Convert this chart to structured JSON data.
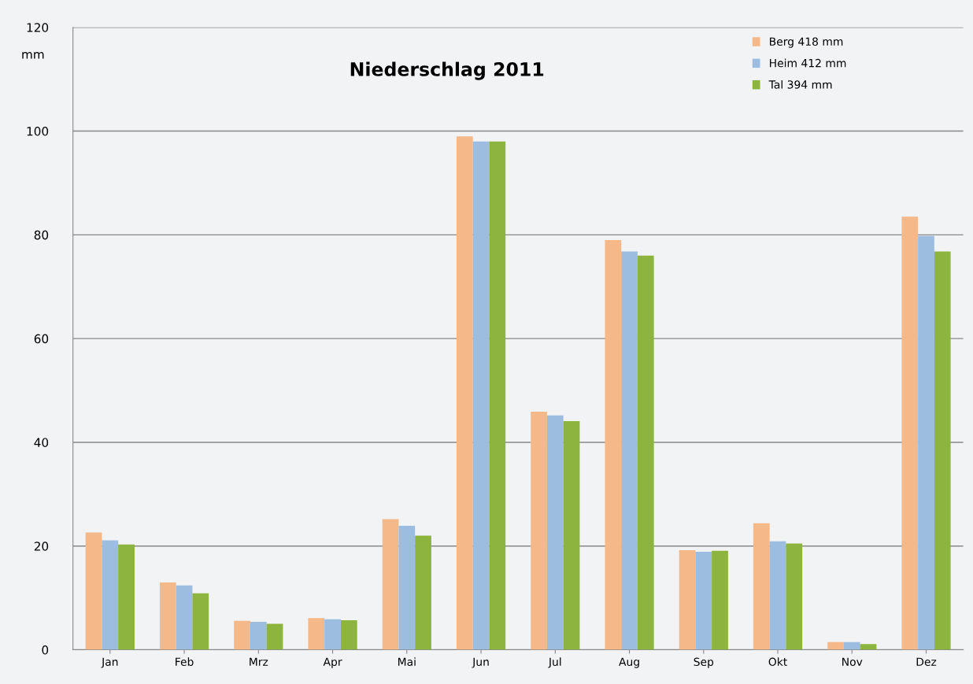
{
  "chart_data": {
    "type": "bar",
    "title": "Niederschlag 2011",
    "ylabel": "mm",
    "categories": [
      "Jan",
      "Feb",
      "Mrz",
      "Apr",
      "Mai",
      "Jun",
      "Jul",
      "Aug",
      "Sep",
      "Okt",
      "Nov",
      "Dez"
    ],
    "series": [
      {
        "name": "Berg 418 mm",
        "color": "#f5b888",
        "values": [
          22.6,
          13.0,
          5.6,
          6.1,
          25.2,
          99.0,
          45.9,
          79.0,
          19.2,
          24.4,
          1.5,
          83.5
        ]
      },
      {
        "name": "Heim 412 mm",
        "color": "#9dbde0",
        "values": [
          21.1,
          12.4,
          5.4,
          5.9,
          23.9,
          98.0,
          45.2,
          76.8,
          18.9,
          20.9,
          1.5,
          79.8
        ]
      },
      {
        "name": "Tal 394 mm",
        "color": "#8db43e",
        "values": [
          20.3,
          10.9,
          5.0,
          5.7,
          22.0,
          98.0,
          44.1,
          76.0,
          19.1,
          20.5,
          1.1,
          76.8
        ]
      }
    ],
    "ylim": [
      0,
      120
    ],
    "yticks": [
      0,
      20,
      40,
      60,
      80,
      100,
      120
    ],
    "grid": "y",
    "legend": "top right"
  }
}
